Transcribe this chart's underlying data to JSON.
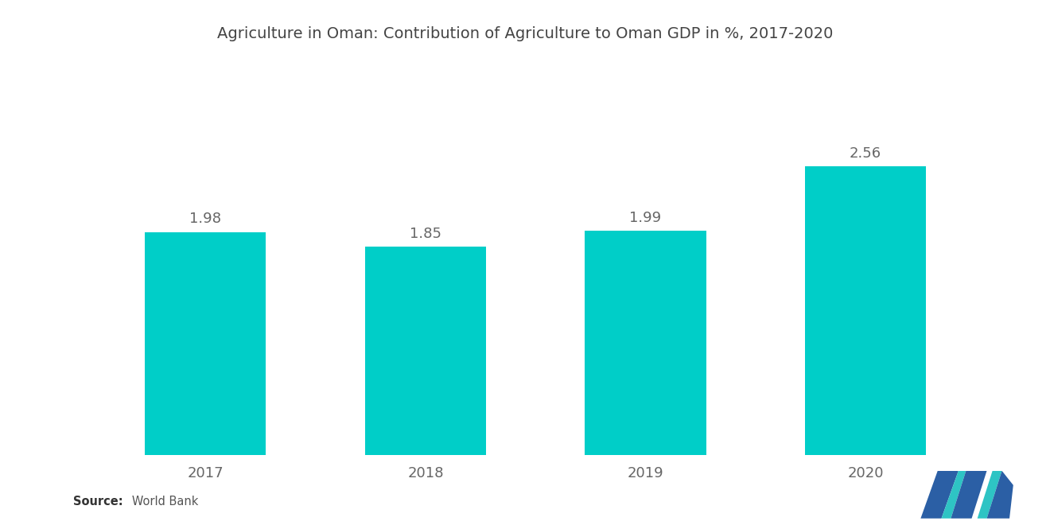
{
  "title": "Agriculture in Oman: Contribution of Agriculture to Oman GDP in %, 2017-2020",
  "categories": [
    "2017",
    "2018",
    "2019",
    "2020"
  ],
  "values": [
    1.98,
    1.85,
    1.99,
    2.56
  ],
  "bar_color": "#00CEC8",
  "background_color": "#ffffff",
  "label_color": "#666666",
  "title_fontsize": 14,
  "tick_fontsize": 13,
  "value_fontsize": 13,
  "source_bold": "Source:",
  "source_normal": "   World Bank",
  "ylim": [
    0,
    3.1
  ],
  "bar_width": 0.55,
  "logo_blue": "#2B5FA5",
  "logo_teal": "#2EC4C4"
}
